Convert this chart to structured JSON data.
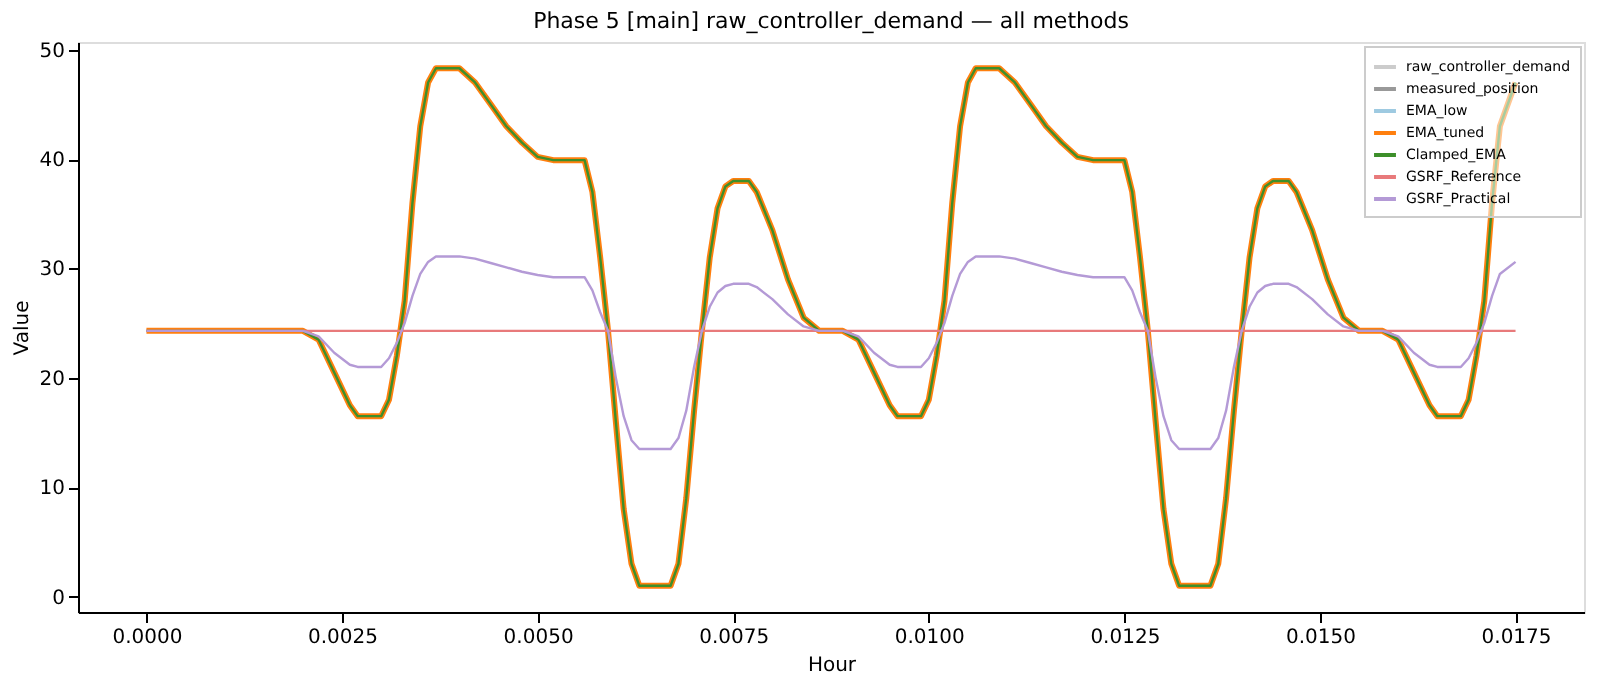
{
  "chart_data": {
    "type": "line",
    "title": "Phase 5 [main] raw_controller_demand — all methods",
    "xlabel": "Hour",
    "ylabel": "Value",
    "x": [
      0,
      0.002,
      0.0022,
      0.0024,
      0.0026,
      0.0027,
      0.003,
      0.0031,
      0.0032,
      0.0033,
      0.0034,
      0.0035,
      0.0036,
      0.0037,
      0.004,
      0.0042,
      0.0044,
      0.0046,
      0.0048,
      0.005,
      0.0052,
      0.0056,
      0.0057,
      0.0058,
      0.0059,
      0.006,
      0.0061,
      0.0062,
      0.0063,
      0.0067,
      0.0068,
      0.0069,
      0.007,
      0.0071,
      0.0072,
      0.0073,
      0.0074,
      0.0075,
      0.0077,
      0.0078,
      0.008,
      0.0082,
      0.0084,
      0.0086,
      0.0089,
      0.0091,
      0.0093,
      0.0095,
      0.0096,
      0.0099,
      0.01,
      0.0101,
      0.0102,
      0.0103,
      0.0104,
      0.0105,
      0.0106,
      0.0109,
      0.0111,
      0.0113,
      0.0115,
      0.0117,
      0.0119,
      0.0121,
      0.0125,
      0.0126,
      0.0127,
      0.0128,
      0.0129,
      0.013,
      0.0131,
      0.0132,
      0.0136,
      0.0137,
      0.0138,
      0.0139,
      0.014,
      0.0141,
      0.0142,
      0.0143,
      0.0144,
      0.0146,
      0.0147,
      0.0149,
      0.0151,
      0.0153,
      0.0155,
      0.0158,
      0.016,
      0.0162,
      0.0164,
      0.0165,
      0.0168,
      0.0169,
      0.017,
      0.0171,
      0.0172,
      0.0173,
      0.0175
    ],
    "series": [
      {
        "name": "raw_controller_demand",
        "color": "#cccccc",
        "values": [
          null,
          null,
          null,
          null,
          null,
          null,
          null,
          null,
          null,
          null,
          null,
          null,
          null,
          null,
          null,
          null,
          null,
          null,
          null,
          null,
          null,
          null,
          null,
          null,
          null,
          null,
          null,
          null,
          null,
          null,
          null,
          null,
          null,
          null,
          null,
          null,
          null,
          null,
          null,
          null,
          null,
          null,
          null,
          null,
          null,
          null,
          null,
          null,
          null,
          null,
          null,
          null,
          null,
          null,
          null,
          null,
          null,
          null,
          null,
          null,
          null,
          null,
          null,
          null,
          null,
          null,
          null,
          null,
          null,
          null,
          null,
          null,
          null,
          null,
          null,
          null,
          null,
          null,
          null,
          null,
          null,
          null,
          null,
          null,
          null,
          null,
          null,
          null,
          null,
          null,
          null,
          null,
          null,
          null,
          null,
          null,
          null,
          null,
          null
        ]
      },
      {
        "name": "measured_position",
        "color": "#999999",
        "values": [
          null,
          null,
          null,
          null,
          null,
          null,
          null,
          null,
          null,
          null,
          null,
          null,
          null,
          null,
          null,
          null,
          null,
          null,
          null,
          null,
          null,
          null,
          null,
          null,
          null,
          null,
          null,
          null,
          null,
          null,
          null,
          null,
          null,
          null,
          null,
          null,
          null,
          null,
          null,
          null,
          null,
          null,
          null,
          null,
          null,
          null,
          null,
          null,
          null,
          null,
          null,
          null,
          null,
          null,
          null,
          null,
          null,
          null,
          null,
          null,
          null,
          null,
          null,
          null,
          null,
          null,
          null,
          null,
          null,
          null,
          null,
          null,
          null,
          null,
          null,
          null,
          null,
          null,
          null,
          null,
          null,
          null,
          null,
          null,
          null,
          null,
          null,
          null,
          null,
          null,
          null,
          null,
          null,
          null,
          null,
          null,
          null,
          null,
          null
        ]
      },
      {
        "name": "EMA_low",
        "color": "#9ecae1",
        "values": [
          null,
          null,
          null,
          null,
          null,
          null,
          null,
          null,
          null,
          null,
          null,
          null,
          null,
          null,
          null,
          null,
          null,
          null,
          null,
          null,
          null,
          null,
          null,
          null,
          null,
          null,
          null,
          null,
          null,
          null,
          null,
          null,
          null,
          null,
          null,
          null,
          null,
          null,
          null,
          null,
          null,
          null,
          null,
          null,
          null,
          null,
          null,
          null,
          null,
          null,
          null,
          null,
          null,
          null,
          null,
          null,
          null,
          null,
          null,
          null,
          null,
          null,
          null,
          null,
          null,
          null,
          null,
          null,
          null,
          null,
          null,
          null,
          null,
          null,
          null,
          null,
          null,
          null,
          null,
          null,
          null,
          null,
          null,
          null,
          null,
          null,
          null,
          null,
          null,
          null,
          null,
          null,
          null,
          null,
          null,
          null,
          null,
          null,
          null
        ]
      },
      {
        "name": "EMA_tuned",
        "color": "#ff7f0e",
        "values": [
          24.3,
          24.3,
          23.5,
          20.5,
          17.5,
          16.5,
          16.5,
          18,
          22,
          27,
          36,
          43,
          47,
          48.3,
          48.3,
          47,
          45,
          43,
          41.5,
          40.2,
          39.9,
          39.9,
          37,
          31,
          24.3,
          16,
          8,
          3,
          1,
          1,
          3,
          9,
          17,
          24.3,
          31,
          35.5,
          37.5,
          38,
          38,
          37,
          33.5,
          29,
          25.5,
          24.3,
          24.3,
          23.5,
          20.5,
          17.5,
          16.5,
          16.5,
          18,
          22,
          27,
          36,
          43,
          47,
          48.3,
          48.3,
          47,
          45,
          43,
          41.5,
          40.2,
          39.9,
          39.9,
          37,
          31,
          24.3,
          16,
          8,
          3,
          1,
          1,
          3,
          9,
          17,
          24.3,
          31,
          35.5,
          37.5,
          38,
          38,
          37,
          33.5,
          29,
          25.5,
          24.3,
          24.3,
          23.5,
          20.5,
          17.5,
          16.5,
          16.5,
          18,
          22,
          27,
          36,
          43,
          47
        ]
      },
      {
        "name": "Clamped_EMA",
        "color": "#3d8f2a",
        "values": [
          24.3,
          24.3,
          23.5,
          20.5,
          17.5,
          16.5,
          16.5,
          18,
          22,
          27,
          36,
          43,
          47,
          48.3,
          48.3,
          47,
          45,
          43,
          41.5,
          40.2,
          39.9,
          39.9,
          37,
          31,
          24.3,
          16,
          8,
          3,
          1,
          1,
          3,
          9,
          17,
          24.3,
          31,
          35.5,
          37.5,
          38,
          38,
          37,
          33.5,
          29,
          25.5,
          24.3,
          24.3,
          23.5,
          20.5,
          17.5,
          16.5,
          16.5,
          18,
          22,
          27,
          36,
          43,
          47,
          48.3,
          48.3,
          47,
          45,
          43,
          41.5,
          40.2,
          39.9,
          39.9,
          37,
          31,
          24.3,
          16,
          8,
          3,
          1,
          1,
          3,
          9,
          17,
          24.3,
          31,
          35.5,
          37.5,
          38,
          38,
          37,
          33.5,
          29,
          25.5,
          24.3,
          24.3,
          23.5,
          20.5,
          17.5,
          16.5,
          16.5,
          18,
          22,
          27,
          36,
          43,
          47
        ]
      },
      {
        "name": "GSRF_Reference",
        "color": "#e87a7b",
        "x": [
          0,
          0.0175
        ],
        "values": [
          24.3,
          24.3
        ]
      },
      {
        "name": "GSRF_Practical",
        "color": "#b49ad6",
        "values": [
          24.3,
          24.3,
          23.8,
          22.3,
          21.2,
          21,
          21,
          21.8,
          23.2,
          25,
          27.5,
          29.5,
          30.6,
          31.1,
          31.1,
          30.9,
          30.5,
          30.1,
          29.7,
          29.4,
          29.2,
          29.2,
          28,
          26,
          24.3,
          20,
          16.5,
          14.3,
          13.5,
          13.5,
          14.5,
          17,
          21,
          24.3,
          26.5,
          27.8,
          28.4,
          28.6,
          28.6,
          28.3,
          27.2,
          25.8,
          24.7,
          24.3,
          24.3,
          23.8,
          22.3,
          21.2,
          21,
          21,
          21.8,
          23.2,
          25,
          27.5,
          29.5,
          30.6,
          31.1,
          31.1,
          30.9,
          30.5,
          30.1,
          29.7,
          29.4,
          29.2,
          29.2,
          28,
          26,
          24.3,
          20,
          16.5,
          14.3,
          13.5,
          13.5,
          14.5,
          17,
          21,
          24.3,
          26.5,
          27.8,
          28.4,
          28.6,
          28.6,
          28.3,
          27.2,
          25.8,
          24.7,
          24.3,
          24.3,
          23.8,
          22.3,
          21.2,
          21,
          21,
          21.8,
          23.2,
          25,
          27.5,
          29.5,
          30.6
        ]
      }
    ],
    "xlim": [
      -0.000875,
      0.018375
    ],
    "xticks": [
      {
        "value": 0,
        "label": "0.0000"
      },
      {
        "value": 0.0025,
        "label": "0.0025"
      },
      {
        "value": 0.005,
        "label": "0.0050"
      },
      {
        "value": 0.0075,
        "label": "0.0075"
      },
      {
        "value": 0.01,
        "label": "0.0100"
      },
      {
        "value": 0.0125,
        "label": "0.0125"
      },
      {
        "value": 0.015,
        "label": "0.0150"
      },
      {
        "value": 0.0175,
        "label": "0.0175"
      }
    ],
    "ylim": [
      -1.4,
      50.7
    ],
    "yticks": [
      0,
      10,
      20,
      30,
      40,
      50
    ],
    "legend": "top right",
    "grid": false,
    "marker": "none",
    "line_style": "solid"
  }
}
